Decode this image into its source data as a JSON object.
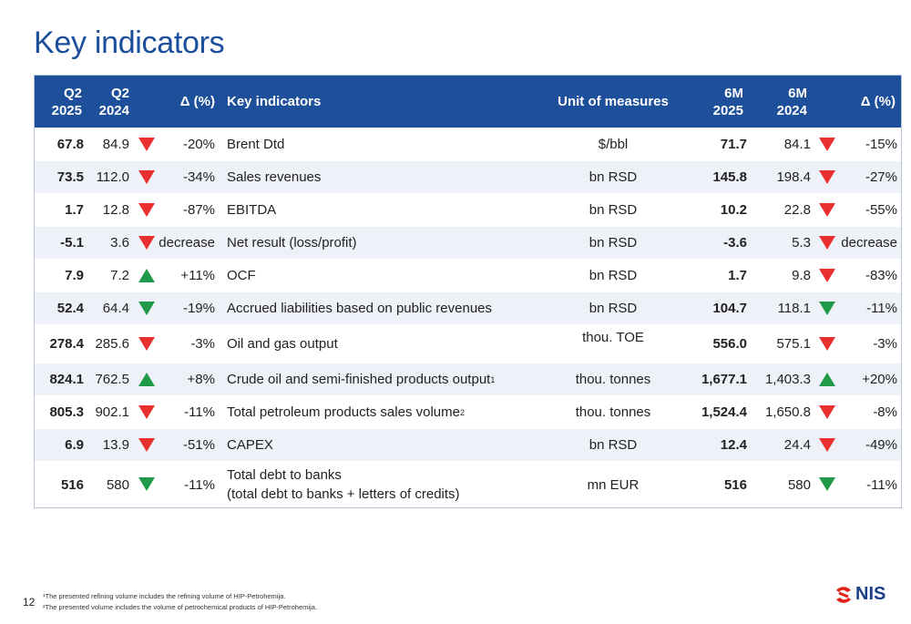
{
  "page": {
    "title": "Key indicators",
    "number": "12",
    "footnotes": [
      "¹The presented refining volume includes the refining volume of HIP-Petrohemija.",
      "²The presented volume includes the volume of petrochemical products of HIP-Petrohemija."
    ],
    "logo_text": "NIS"
  },
  "table": {
    "headers": {
      "q2_2025": [
        "Q2",
        "2025"
      ],
      "q2_2024": [
        "Q2",
        "2024"
      ],
      "delta_q": "Δ (%)",
      "indicator": "Key indicators",
      "unit": "Unit of measures",
      "m6_2025": [
        "6M",
        "2025"
      ],
      "m6_2024": [
        "6M",
        "2024"
      ],
      "delta_m": "Δ (%)"
    },
    "rows": [
      {
        "q25": "67.8",
        "q24": "84.9",
        "q_trend": "down-red",
        "q_delta": "-20%",
        "name": "Brent Dtd",
        "sup": "",
        "unit": "$/bbl",
        "m25": "71.7",
        "m24": "84.1",
        "m_trend": "down-red",
        "m_delta": "-15%"
      },
      {
        "q25": "73.5",
        "q24": "112.0",
        "q_trend": "down-red",
        "q_delta": "-34%",
        "name": "Sales revenues",
        "sup": "",
        "unit": "bn RSD",
        "m25": "145.8",
        "m24": "198.4",
        "m_trend": "down-red",
        "m_delta": "-27%"
      },
      {
        "q25": "1.7",
        "q24": "12.8",
        "q_trend": "down-red",
        "q_delta": "-87%",
        "name": "EBITDA",
        "sup": "",
        "unit": "bn RSD",
        "m25": "10.2",
        "m24": "22.8",
        "m_trend": "down-red",
        "m_delta": "-55%"
      },
      {
        "q25": "-5.1",
        "q24": "3.6",
        "q_trend": "down-red",
        "q_delta": "decrease",
        "name": "Net result (loss/profit)",
        "sup": "",
        "unit": "bn RSD",
        "m25": "-3.6",
        "m24": "5.3",
        "m_trend": "down-red",
        "m_delta": "decrease"
      },
      {
        "q25": "7.9",
        "q24": "7.2",
        "q_trend": "up-green",
        "q_delta": "+11%",
        "name": "OCF",
        "sup": "",
        "unit": "bn RSD",
        "m25": "1.7",
        "m24": "9.8",
        "m_trend": "down-red",
        "m_delta": "-83%"
      },
      {
        "q25": "52.4",
        "q24": "64.4",
        "q_trend": "down-green",
        "q_delta": "-19%",
        "name": "Accrued liabilities based on public revenues",
        "sup": "",
        "unit": "bn RSD",
        "m25": "104.7",
        "m24": "118.1",
        "m_trend": "down-green",
        "m_delta": "-11%"
      },
      {
        "q25": "278.4",
        "q24": "285.6",
        "q_trend": "down-red",
        "q_delta": "-3%",
        "name": "Oil and gas output",
        "sup": "",
        "unit": "thou. TOE",
        "m25": "556.0",
        "m24": "575.1",
        "m_trend": "down-red",
        "m_delta": "-3%"
      },
      {
        "q25": "824.1",
        "q24": "762.5",
        "q_trend": "up-green",
        "q_delta": "+8%",
        "name": "Crude oil and semi-finished products output",
        "sup": "1",
        "unit": "thou. tonnes",
        "m25": "1,677.1",
        "m24": "1,403.3",
        "m_trend": "up-green",
        "m_delta": "+20%"
      },
      {
        "q25": "805.3",
        "q24": "902.1",
        "q_trend": "down-red",
        "q_delta": "-11%",
        "name": "Total petroleum products sales volume",
        "sup": "2",
        "unit": "thou. tonnes",
        "m25": "1,524.4",
        "m24": "1,650.8",
        "m_trend": "down-red",
        "m_delta": "-8%"
      },
      {
        "q25": "6.9",
        "q24": "13.9",
        "q_trend": "down-red",
        "q_delta": "-51%",
        "name": "CAPEX",
        "sup": "",
        "unit": "bn RSD",
        "m25": "12.4",
        "m24": "24.4",
        "m_trend": "down-red",
        "m_delta": "-49%"
      },
      {
        "q25": "516",
        "q24": "580",
        "q_trend": "down-green",
        "q_delta": "-11%",
        "name": "Total debt to banks",
        "name2": "(total debt to banks + letters of credits)",
        "sup": "",
        "unit": "mn EUR",
        "m25": "516",
        "m24": "580",
        "m_trend": "down-green",
        "m_delta": "-11%"
      }
    ]
  },
  "colors": {
    "header_bg": "#1d4f9a",
    "title": "#1b4f9c",
    "down_red": "#e8312f",
    "up_green": "#1f9a48",
    "row_alt": "#eef1f7"
  }
}
